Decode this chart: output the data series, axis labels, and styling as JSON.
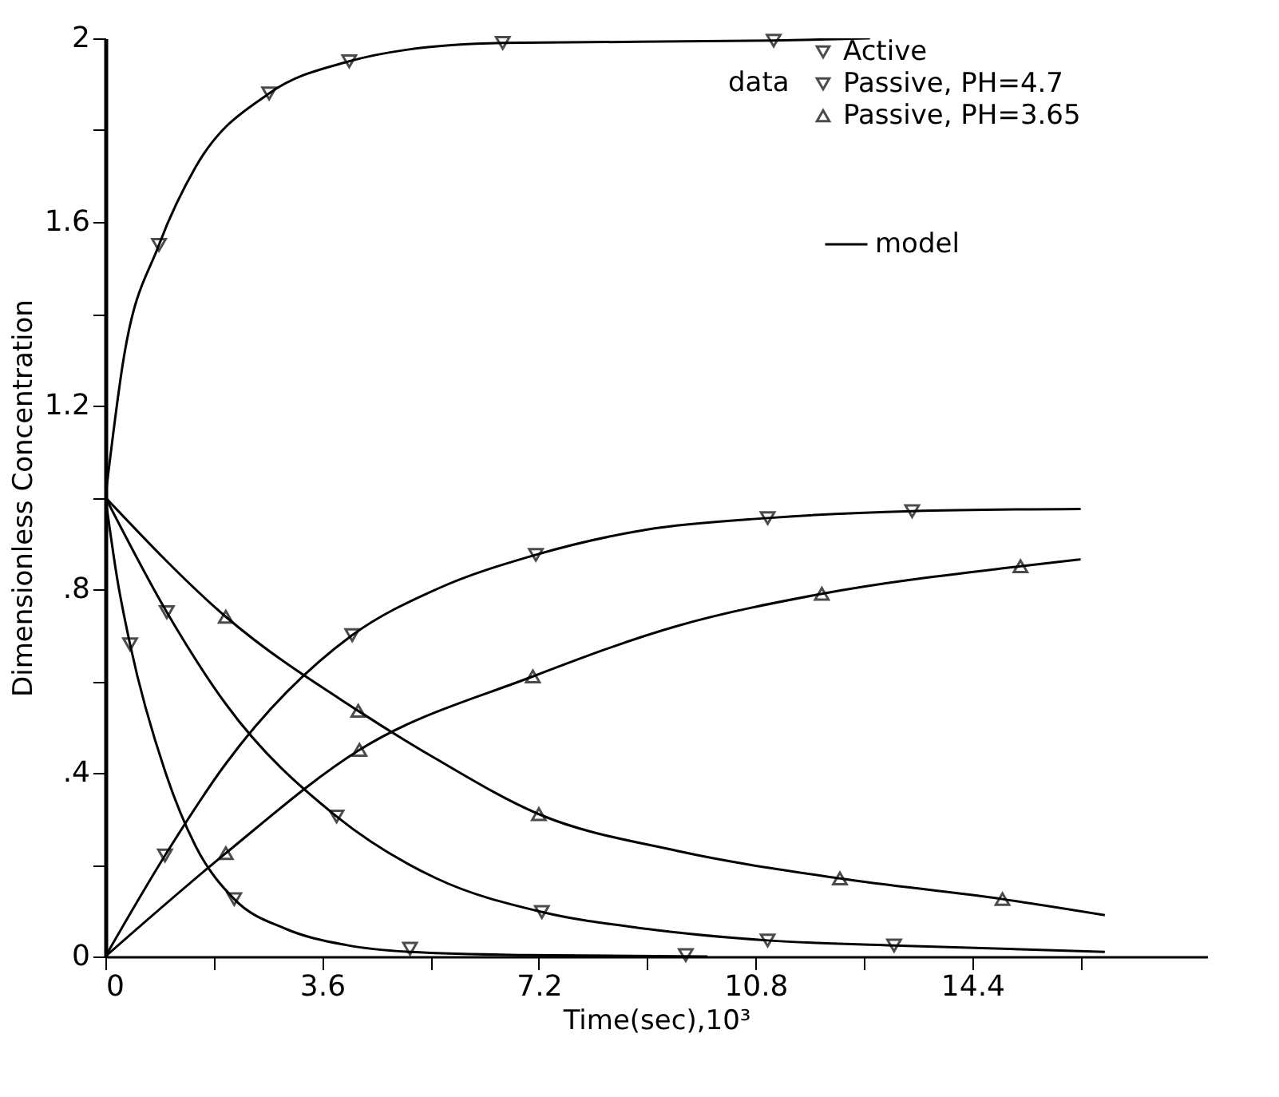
{
  "chart_data": {
    "type": "line",
    "xlabel": "Time(sec),10³",
    "ylabel": "Dimensionless Concentration",
    "legend_title": "data",
    "legend": "top right",
    "grid": false,
    "line_style": "solid",
    "xlim": [
      0,
      18.3
    ],
    "ylim": [
      0,
      2
    ],
    "xticks": [
      0,
      {
        "value": 1.8,
        "label": null
      },
      3.6,
      {
        "value": 5.4,
        "label": null
      },
      7.2,
      {
        "value": 9,
        "label": null
      },
      10.8,
      {
        "value": 12.6,
        "label": null
      },
      14.4,
      {
        "value": 16.2,
        "label": null
      }
    ],
    "yticks": [
      0,
      {
        "value": 0.2,
        "label": null
      },
      {
        "value": 0.4,
        "label": ".4"
      },
      {
        "value": 0.6,
        "label": null
      },
      {
        "value": 0.8,
        "label": ".8"
      },
      {
        "value": 1.0,
        "label": null
      },
      1.2,
      {
        "value": 1.4,
        "label": null
      },
      1.6,
      {
        "value": 1.8,
        "label": null
      },
      2
    ],
    "series": [
      {
        "name": "Active",
        "type": "scatter",
        "marker": "triangle-down",
        "color": "#000000",
        "x": [
          0.41,
          2.14,
          5.06,
          9.64
        ],
        "values": [
          0.68,
          0.125,
          0.017,
          0.003
        ]
      },
      {
        "name": "Passive, PH=4.7",
        "type": "scatter",
        "marker": "triangle-down",
        "color": "#000000",
        "x": [
          0.89,
          2.72,
          4.05,
          6.6,
          11.1,
          1.02,
          3.84,
          7.25,
          11.0,
          13.1,
          0.99,
          4.1,
          7.15,
          11.0,
          13.4
        ],
        "values": [
          1.55,
          1.88,
          1.95,
          1.99,
          1.995,
          0.75,
          0.305,
          0.097,
          0.035,
          0.024,
          0.22,
          0.7,
          0.875,
          0.955,
          0.97
        ]
      },
      {
        "name": "Passive, PH=3.65",
        "type": "scatter",
        "marker": "triangle-up",
        "color": "#000000",
        "x": [
          2.0,
          4.2,
          7.2,
          12.2,
          14.9,
          2.0,
          4.22,
          7.1,
          11.9,
          15.2
        ],
        "values": [
          0.74,
          0.535,
          0.31,
          0.17,
          0.125,
          0.225,
          0.45,
          0.61,
          0.79,
          0.85
        ]
      },
      {
        "name": "model",
        "color": "#000000",
        "x": [
          0,
          0.3,
          0.89,
          1.5,
          2.72,
          4.05,
          5.0,
          6.6,
          11.1,
          12.7
        ],
        "values": [
          1,
          1.3,
          1.55,
          1.72,
          1.88,
          1.95,
          1.975,
          1.99,
          1.995,
          2.0
        ]
      },
      {
        "color": "#000000",
        "x": [
          0,
          0.2,
          0.41,
          1.0,
          1.5,
          2.14,
          3.0,
          4.0,
          5.06,
          7.0,
          10.0
        ],
        "values": [
          1,
          0.82,
          0.68,
          0.4,
          0.24,
          0.125,
          0.06,
          0.025,
          0.01,
          0.003,
          0
        ]
      },
      {
        "color": "#000000",
        "x": [
          0,
          1.02,
          2.0,
          3.84,
          5.5,
          7.25,
          9.0,
          11.0,
          13.1,
          16.6
        ],
        "values": [
          1,
          0.75,
          0.55,
          0.305,
          0.17,
          0.097,
          0.06,
          0.035,
          0.024,
          0.01
        ]
      },
      {
        "color": "#000000",
        "x": [
          0,
          0.99,
          2.0,
          4.1,
          5.5,
          7.15,
          9.0,
          11.0,
          13.4,
          16.2
        ],
        "values": [
          0,
          0.22,
          0.42,
          0.7,
          0.8,
          0.875,
          0.93,
          0.955,
          0.97,
          0.975
        ]
      },
      {
        "color": "#000000",
        "x": [
          0,
          2.0,
          4.2,
          5.5,
          7.2,
          9.5,
          12.2,
          14.9,
          16.6
        ],
        "values": [
          1,
          0.74,
          0.535,
          0.43,
          0.31,
          0.23,
          0.17,
          0.125,
          0.09
        ]
      },
      {
        "color": "#000000",
        "x": [
          0,
          2.0,
          4.22,
          7.1,
          9.5,
          11.9,
          15.2,
          16.2
        ],
        "values": [
          0,
          0.225,
          0.45,
          0.61,
          0.72,
          0.79,
          0.85,
          0.865
        ]
      }
    ]
  }
}
